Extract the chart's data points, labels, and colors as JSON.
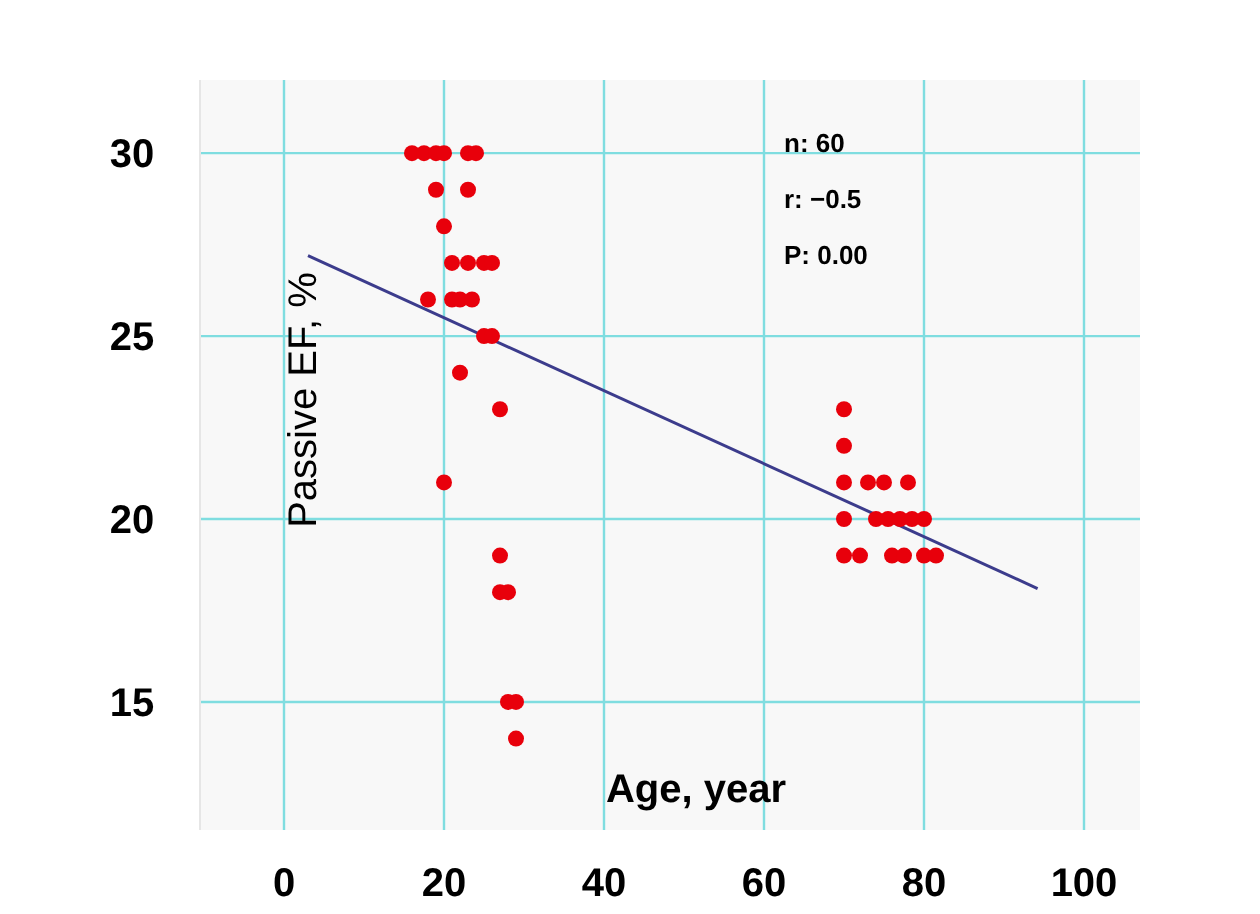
{
  "chart_data": {
    "type": "scatter",
    "xlabel": "Age, year",
    "ylabel": "Passive EF, %",
    "xlim": [
      -10.5,
      107
    ],
    "ylim": [
      11.5,
      32
    ],
    "xticks": [
      0,
      20,
      40,
      60,
      80,
      100
    ],
    "yticks": [
      15,
      20,
      25,
      30
    ],
    "grid": true,
    "annotations": [
      "n: 60",
      "r: −0.5",
      "P: 0.00"
    ],
    "series": [
      {
        "marker": "circle",
        "color": "#e8000b",
        "x": [
          16,
          17.5,
          19,
          20,
          23,
          24,
          19,
          23,
          20,
          21,
          23,
          25,
          26,
          18,
          21,
          22,
          23.5,
          25,
          26,
          22,
          27,
          20,
          27,
          27,
          28,
          28,
          29,
          29,
          70,
          70,
          70,
          73,
          75,
          78,
          70,
          74,
          75.5,
          77,
          78.5,
          80,
          70,
          72,
          76,
          77.5,
          80,
          81.5
        ],
        "values": [
          30,
          30,
          30,
          30,
          30,
          30,
          29,
          29,
          28,
          27,
          27,
          27,
          27,
          26,
          26,
          26,
          26,
          25,
          25,
          24,
          23,
          21,
          19,
          18,
          18,
          15,
          15,
          14,
          23,
          22,
          21,
          21,
          21,
          21,
          20,
          20,
          20,
          20,
          20,
          20,
          19,
          19,
          19,
          19,
          19,
          19
        ]
      },
      {
        "type": "line",
        "color": "#3c3c8c",
        "x": [
          3,
          94.2
        ],
        "values": [
          27.2,
          18.1
        ]
      }
    ]
  }
}
